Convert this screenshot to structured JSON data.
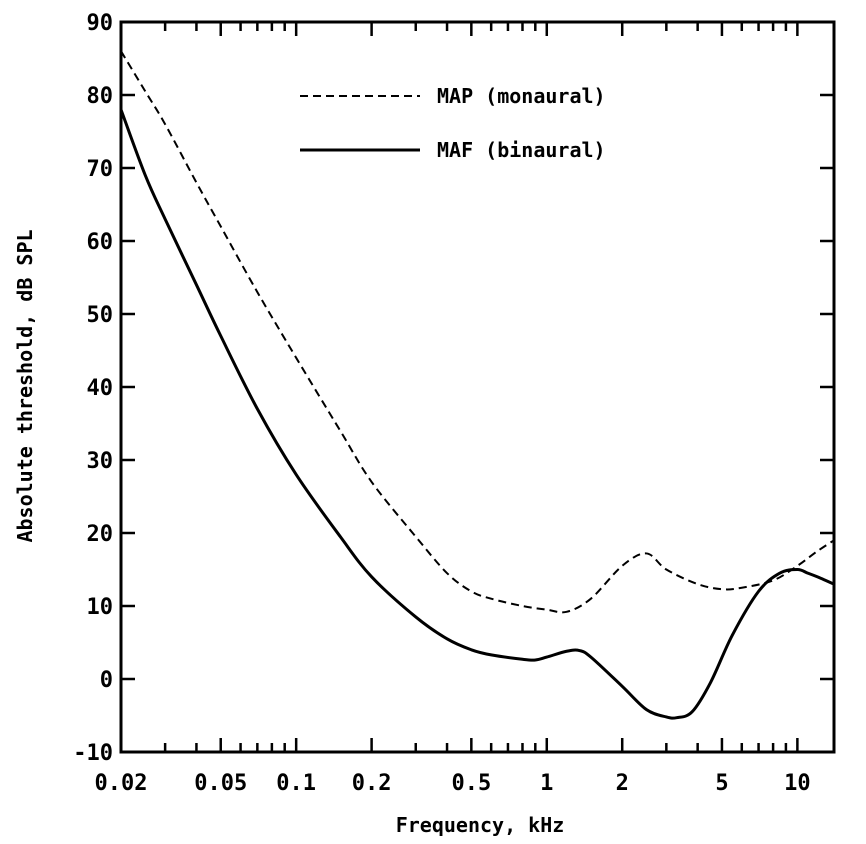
{
  "chart_data": {
    "type": "line",
    "title": "",
    "xlabel": "Frequency, kHz",
    "ylabel": "Absolute threshold, dB SPL",
    "x_scale": "log",
    "xlim": [
      0.02,
      14
    ],
    "ylim": [
      -10,
      90
    ],
    "grid": false,
    "legend_position": "top-center",
    "x_ticks": [
      {
        "value": 0.02,
        "label": "0.02"
      },
      {
        "value": 0.05,
        "label": "0.05"
      },
      {
        "value": 0.1,
        "label": "0.1"
      },
      {
        "value": 0.2,
        "label": "0.2"
      },
      {
        "value": 0.5,
        "label": "0.5"
      },
      {
        "value": 1,
        "label": "1"
      },
      {
        "value": 2,
        "label": "2"
      },
      {
        "value": 5,
        "label": "5"
      },
      {
        "value": 10,
        "label": "10"
      }
    ],
    "y_ticks": [
      {
        "value": -10,
        "label": "-10"
      },
      {
        "value": 0,
        "label": "0"
      },
      {
        "value": 10,
        "label": "10"
      },
      {
        "value": 20,
        "label": "20"
      },
      {
        "value": 30,
        "label": "30"
      },
      {
        "value": 40,
        "label": "40"
      },
      {
        "value": 50,
        "label": "50"
      },
      {
        "value": 60,
        "label": "60"
      },
      {
        "value": 70,
        "label": "70"
      },
      {
        "value": 80,
        "label": "80"
      },
      {
        "value": 90,
        "label": "90"
      }
    ],
    "series": [
      {
        "name": "MAP (monaural)",
        "style": "dashed",
        "color": "#000000",
        "x": [
          0.02,
          0.025,
          0.03,
          0.04,
          0.05,
          0.07,
          0.1,
          0.15,
          0.2,
          0.3,
          0.4,
          0.5,
          0.6,
          0.8,
          1.0,
          1.2,
          1.5,
          2.0,
          2.5,
          3.0,
          4.0,
          5.0,
          6.0,
          8.0,
          10.0,
          12.0,
          14.0
        ],
        "y": [
          86,
          80.5,
          76,
          68,
          62,
          53,
          44,
          34,
          27,
          19.5,
          14.5,
          12,
          11,
          10,
          9.5,
          9.2,
          11,
          15.5,
          17.2,
          15,
          13,
          12.3,
          12.5,
          13.5,
          15.5,
          17.5,
          19
        ]
      },
      {
        "name": "MAF (binaural)",
        "style": "solid",
        "color": "#000000",
        "x": [
          0.02,
          0.025,
          0.03,
          0.04,
          0.05,
          0.07,
          0.1,
          0.15,
          0.2,
          0.3,
          0.4,
          0.5,
          0.6,
          0.8,
          0.9,
          1.0,
          1.2,
          1.35,
          1.5,
          2.0,
          2.5,
          3.0,
          3.3,
          3.8,
          4.5,
          5.5,
          7.0,
          8.5,
          10.0,
          11.0,
          12.0,
          14.0
        ],
        "y": [
          78,
          69,
          63,
          54,
          47,
          37,
          28,
          19.5,
          14,
          8.5,
          5.5,
          4,
          3.3,
          2.7,
          2.6,
          3.0,
          3.8,
          3.9,
          3.0,
          -1,
          -4.2,
          -5.2,
          -5.3,
          -4.5,
          -0.5,
          6,
          12,
          14.5,
          15,
          14.5,
          14,
          13
        ]
      }
    ]
  }
}
